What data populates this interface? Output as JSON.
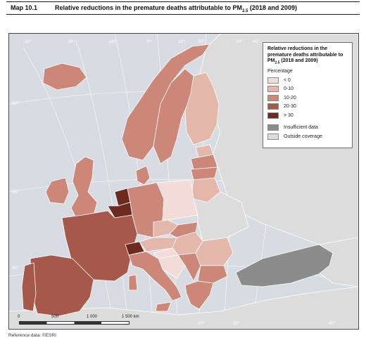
{
  "header": {
    "map_label": "Map 10.1",
    "title": "Relative reductions in the premature deaths attributable to PM",
    "title_sub": "2.5",
    "title_suffix": " (2018 and 2009)"
  },
  "legend": {
    "title": "Relative reductions in the premature deaths attributable to PM",
    "title_sub": "2.5",
    "title_suffix": " (2018 and 2009)",
    "subtitle": "Percentage",
    "classes": [
      {
        "label": "< 0",
        "color": "#f3dcd7"
      },
      {
        "label": "0-10",
        "color": "#e4b7ab"
      },
      {
        "label": "10-20",
        "color": "#cd8778"
      },
      {
        "label": "20-30",
        "color": "#a6584a"
      },
      {
        "label": "> 30",
        "color": "#6d2a1f"
      }
    ],
    "other": [
      {
        "label": "Insufficient data",
        "color": "#8c8c8c"
      },
      {
        "label": "Outside coverage",
        "color": "#dcdcdc"
      }
    ]
  },
  "graticule": {
    "lon_labels": [
      "-30°",
      "-20°",
      "-10°",
      "0°",
      "10°",
      "20°",
      "30°",
      "40°",
      "20°",
      "30°",
      "40°"
    ],
    "lat_labels": [
      "60°",
      "50°",
      "40°"
    ]
  },
  "scale_bar": {
    "labels": [
      "0",
      "500",
      "1 000",
      "1 500 km"
    ]
  },
  "footer": "Reference data: ©ESRI",
  "colors": {
    "sea": "#d7dce2",
    "outside": "#dcdcdc",
    "insufficient": "#8c8c8c",
    "border": "#ffffff"
  }
}
